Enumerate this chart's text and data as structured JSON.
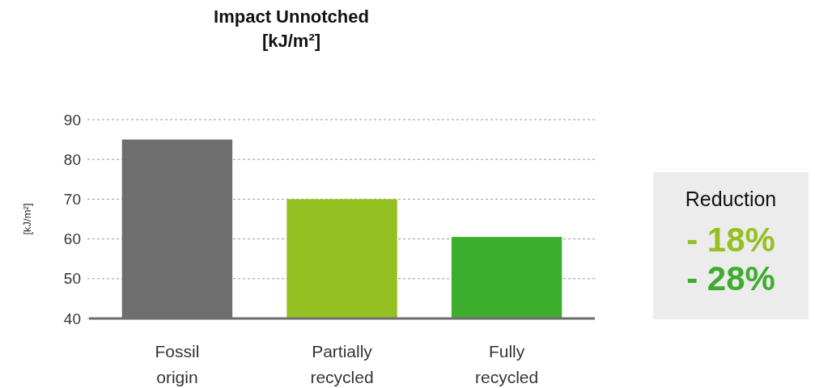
{
  "chart_data": {
    "type": "bar",
    "title": "Impact Unnotched [kJ/m²]",
    "ylabel": "[kJ/m²]",
    "categories": [
      "Fossil origin",
      "Partially recycled",
      "Fully recycled"
    ],
    "values": [
      85,
      70,
      60.5
    ],
    "colors": [
      "#6e6e6e",
      "#95c021",
      "#3dad2e"
    ],
    "ylim": [
      40,
      90
    ],
    "yticks": [
      40,
      50,
      60,
      70,
      80,
      90
    ],
    "grid": "y",
    "annotations": [
      "Reduction",
      "- 18%",
      "- 28%"
    ]
  }
}
